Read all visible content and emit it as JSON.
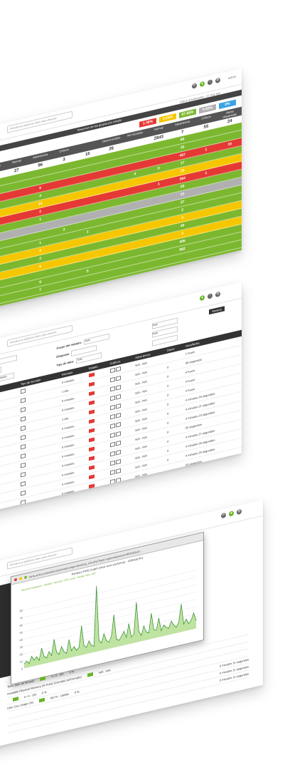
{
  "colors": {
    "green": "#7cb82f",
    "yellow": "#f6c700",
    "red": "#e53935",
    "grey": "#b0b0b0",
    "blue": "#3aa3e3",
    "orange": "#f39c12"
  },
  "shot1": {
    "search_placeholder": "Introduzca palabra clave para buscar",
    "user_label": "admin",
    "header_hint": "Datos actualizados - 11 seg ago",
    "groups_header": "Resumen de los grupos por estado",
    "modules_header": "Módulos",
    "agents_header": "Agentes",
    "left_pcts": [
      {
        "value": "2.08%",
        "color": "#b0b0b0"
      },
      {
        "value": "16.75%",
        "color": "#3aa3e3"
      }
    ],
    "right_pcts": [
      {
        "value": "1.38%",
        "color": "#e53935"
      },
      {
        "value": "3.24%",
        "color": "#f6c700"
      },
      {
        "value": "87.68%",
        "color": "#7cb82f"
      },
      {
        "value": "0.69%",
        "color": "#b0b0b0"
      },
      {
        "value": "0%",
        "color": "#3aa3e3"
      }
    ],
    "stat_headers": [
      "Desconocidos",
      "No iniciados",
      "Normal",
      "Advertencia",
      "Críticos",
      "",
      "Desconocidos",
      "No iniciados",
      "Normal",
      "Advertencia",
      "Críticos",
      "Alerta disparadas"
    ],
    "stat_values": [
      "",
      "3",
      "27",
      "96",
      "3",
      "15",
      "26",
      "",
      "2843",
      "7",
      "55",
      "24"
    ],
    "rows": [
      {
        "color": "#7cb82f",
        "cells": [
          "",
          "",
          "",
          "",
          "",
          "",
          "",
          "",
          "",
          "66",
          "",
          ""
        ]
      },
      {
        "color": "#7cb82f",
        "cells": [
          "",
          "3",
          "",
          "",
          "",
          "",
          "",
          "",
          "",
          "15",
          "",
          ""
        ]
      },
      {
        "color": "#e53935",
        "cells": [
          "",
          "",
          "",
          "5",
          "",
          "",
          "",
          "",
          "",
          "457",
          "1",
          "16"
        ]
      },
      {
        "color": "#7cb82f",
        "cells": [
          "",
          "",
          "",
          "3",
          "",
          "",
          "",
          "4",
          "9",
          "17",
          "",
          ""
        ]
      },
      {
        "color": "#f6c700",
        "cells": [
          "",
          "1",
          "",
          "14",
          "",
          "",
          "",
          "",
          "",
          "15",
          "",
          ""
        ]
      },
      {
        "color": "#e53935",
        "cells": [
          "1",
          "1",
          "",
          "2",
          "",
          "",
          "",
          "",
          "1",
          "384",
          "1",
          ""
        ]
      },
      {
        "color": "#7cb82f",
        "cells": [
          "",
          "",
          "",
          "1",
          "",
          "",
          "",
          "",
          "",
          "59",
          "",
          ""
        ]
      },
      {
        "color": "#b0b0b0",
        "cells": [
          "",
          "1",
          "",
          "",
          "",
          "",
          "",
          "",
          "",
          "33",
          "",
          ""
        ]
      },
      {
        "color": "#7cb82f",
        "cells": [
          "",
          "",
          "",
          "",
          "3",
          "",
          "",
          "",
          "",
          "37",
          "",
          ""
        ]
      },
      {
        "color": "#7cb82f",
        "cells": [
          "",
          "",
          "",
          "1",
          "",
          "1",
          "",
          "",
          "",
          "2",
          "",
          ""
        ]
      },
      {
        "color": "#f6c700",
        "cells": [
          "1",
          "",
          "",
          "2",
          "",
          "",
          "",
          "",
          "",
          "3",
          "",
          ""
        ]
      },
      {
        "color": "#7cb82f",
        "cells": [
          "3",
          "",
          "",
          "2",
          "",
          "",
          "",
          "",
          "",
          "49",
          "",
          ""
        ]
      },
      {
        "color": "#f6c700",
        "cells": [
          "",
          "",
          "",
          "5",
          "",
          "",
          "",
          "",
          "",
          "3",
          "",
          ""
        ]
      },
      {
        "color": "#7cb82f",
        "cells": [
          "3",
          "",
          "",
          "",
          "",
          "",
          "",
          "",
          "",
          "495",
          "",
          ""
        ]
      },
      {
        "color": "#7cb82f",
        "cells": [
          "5",
          "",
          "",
          "6",
          "",
          "5",
          "",
          "",
          "",
          "682",
          "",
          ""
        ]
      },
      {
        "color": "#7cb82f",
        "cells": [
          "1",
          "",
          "",
          "7",
          "",
          "",
          "",
          "",
          "",
          "",
          "",
          ""
        ]
      },
      {
        "color": "#7cb82f",
        "cells": [
          "7",
          "",
          "",
          "",
          "",
          "",
          "",
          "",
          "",
          "",
          "",
          ""
        ]
      }
    ]
  },
  "shot2": {
    "search_placeholder": "Introduzca palabra clave para buscar",
    "filter_button": "Mostrar",
    "filters": [
      {
        "label": "Estado del módulo:",
        "value": "Crítico"
      },
      {
        "label": "Grupo del módulo:",
        "value": "Todo"
      },
      {
        "label": "",
        "value": "Todo"
      },
      {
        "label": "Buscar:",
        "value": ""
      },
      {
        "label": "Etiquetas",
        "value": ""
      },
      {
        "label": "",
        "value": "Todo"
      },
      {
        "label": "Mostrar módulo :",
        "value": "Sólo habilitados"
      },
      {
        "label": "Tipo de dato:",
        "value": "Todo"
      },
      {
        "label": "",
        "value": ""
      }
    ],
    "columns": [
      "Módulo",
      "Tipo de servidor",
      "Intervalo",
      "Estado",
      "Gráficos",
      "Advertencia",
      "Datos",
      "Hora/fecha"
    ],
    "rows": [
      {
        "module": "CPU Load",
        "type": "linux",
        "interval": "5 minutos",
        "graph": "N/A - N/A",
        "data": "",
        "time": "1 hours"
      },
      {
        "module": "Apache_...as",
        "type": "",
        "interval": "1 día",
        "graph": "N/A - N/A",
        "data": "0",
        "time": "26 segundos"
      },
      {
        "module": "Service_...ger",
        "type": "",
        "interval": "5 minutos",
        "graph": "N/A - N/A",
        "data": "0",
        "time": "4 hours"
      },
      {
        "module": "MSSQL...Status",
        "type": "",
        "interval": "5 minutos",
        "graph": "N/A - N/A",
        "data": "0",
        "time": "4 hours"
      },
      {
        "module": "MySQL_Status",
        "type": "",
        "interval": "1 día",
        "graph": "N/A - N/A",
        "data": "0",
        "time": "4 hours"
      },
      {
        "module": "DISCO_Status",
        "type": "",
        "interval": "5 minutos",
        "graph": "N/A - N/A",
        "data": "0",
        "time": "4 minutos 20 segundos"
      },
      {
        "module": "Disponibilidad",
        "type": "",
        "interval": "5 minutos",
        "graph": "N/A - N/A",
        "data": "0",
        "time": "4 minutos 21 segundos"
      },
      {
        "module": "DISCO_PDL_Status",
        "type": "",
        "interval": "5 minutos",
        "graph": "N/A - N/A",
        "data": "0",
        "time": "4 minutos 23 segundos"
      },
      {
        "module": "DISCO_PDL_Status",
        "type": "",
        "interval": "5 minutos",
        "graph": "N/A - N/A",
        "data": "0",
        "time": "25 segundos"
      },
      {
        "module": "DISCO_PDL_FSteStatus",
        "type": "",
        "interval": "5 minutos",
        "graph": "N/A - N/A",
        "data": "0",
        "time": "4 minutos 27 segundos"
      },
      {
        "module": "DISCO_PDL_FSteStatus",
        "type": "",
        "interval": "5 minutos",
        "graph": "N/A - N/A",
        "data": "0",
        "time": "4 minutos 26 segundos"
      },
      {
        "module": "Principal",
        "type": "",
        "interval": "5 minutos",
        "graph": "N/A - N/A",
        "data": "0",
        "time": "4 minutos 25 segundos"
      },
      {
        "module": "Integria API Check",
        "type": "",
        "interval": "5 minutos",
        "graph": "N/A - N/A",
        "data": "",
        "time": "23 segundos"
      },
      {
        "module": "Xtrana_status",
        "type": "",
        "interval": "",
        "graph": "",
        "data": "",
        "time": ""
      },
      {
        "module": "WEB Status",
        "type": "",
        "interval": "",
        "graph": "",
        "data": "",
        "time": ""
      }
    ]
  },
  "shot3": {
    "search_placeholder": "Introduzca palabra clave para buscar",
    "contact_label": "Contacto de agente",
    "intervals_label": "Intervalo:",
    "window_url": "tarta.artica.es/pandora/operation/agentes/stat_win.php?type=sparse&period=86400&id=...",
    "window_title": "Pandora FMS Graph (Host venc.es/Arena) - XDBAdCPU",
    "legend_text": "Memory.NetStatus - Modulo: Vencido: CPU Load - Media: Max: Min",
    "y_ticks": [
      "80",
      "70",
      "60",
      "50",
      "40",
      "30",
      "20",
      "10",
      "0"
    ],
    "chart_data": {
      "type": "area",
      "title": "",
      "xlabel": "",
      "ylabel": "",
      "ylim": [
        0,
        100
      ],
      "series": [
        {
          "values": [
            6,
            9,
            5,
            14,
            8,
            12,
            6,
            22,
            10,
            7,
            15,
            9,
            30,
            12,
            8,
            18,
            10,
            7,
            25,
            9,
            14,
            8,
            11,
            40,
            12,
            9,
            17,
            10,
            8,
            90,
            15,
            10,
            22,
            12,
            9,
            16,
            45,
            11,
            8,
            13,
            19,
            10,
            28,
            9,
            12,
            55,
            14,
            8,
            20,
            11,
            9,
            35,
            12,
            10,
            26,
            8,
            15,
            11,
            9,
            18,
            12,
            8,
            14,
            38,
            10,
            16,
            9,
            13,
            22,
            11
          ]
        }
      ]
    },
    "below_rows": [
      {
        "label": "Texto (tipo de bloque)",
        "range": "0 / 0 - 0/0",
        "val": "0 %"
      },
      {
        "label": "Available Physical Memory (% Free) (Cerrado) (w/Cerrado)",
        "range": "N/A - N/A",
        "val": ""
      },
      {
        "label": "",
        "range": "0 / 0 - 0/0",
        "val": "0 %"
      },
      {
        "label": "User Cpu Usage (%)",
        "range": "65/70 - 100/90",
        "val": "0 %"
      }
    ],
    "right_times": [
      "2 minutos 11 segundos",
      "2 minutos 11 segundos",
      "2 minutos 11 segundos"
    ]
  }
}
